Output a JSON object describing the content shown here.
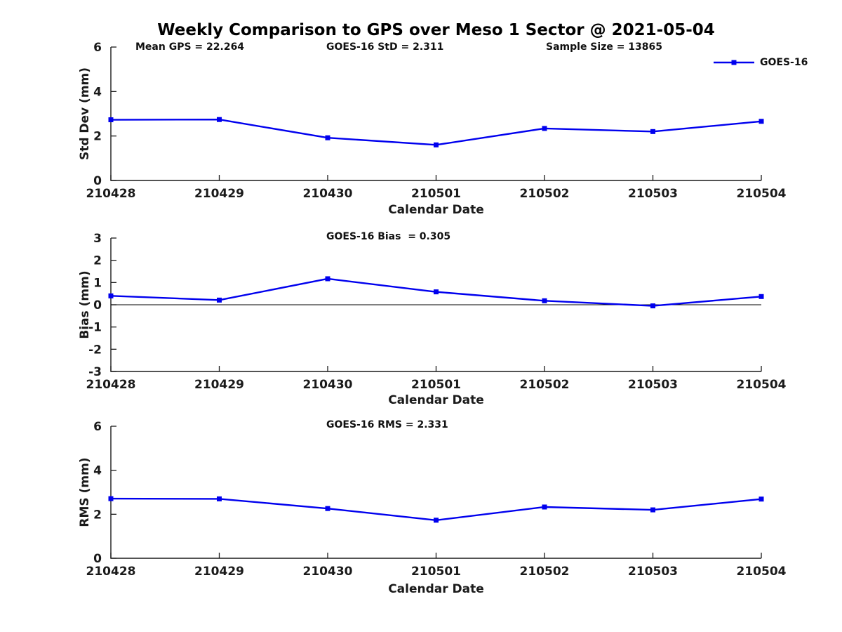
{
  "title": "Weekly Comparison to GPS over Meso 1 Sector @ 2021-05-04",
  "legend": {
    "label": "GOES-16",
    "position": "top-right"
  },
  "colors": {
    "line": "#0000EE",
    "axis": "#1A1A1A",
    "zero_line": "#000000",
    "text": "#1A1A1A"
  },
  "chart_data": [
    {
      "type": "line",
      "ylabel": "Std Dev (mm)",
      "xlabel": "Calendar Date",
      "ylim": [
        0,
        6
      ],
      "yticks": [
        0,
        2,
        4,
        6
      ],
      "grid": false,
      "zero_line": false,
      "categories": [
        "210428",
        "210429",
        "210430",
        "210501",
        "210502",
        "210503",
        "210504"
      ],
      "series": [
        {
          "name": "GOES-16",
          "values": [
            2.73,
            2.74,
            1.92,
            1.6,
            2.34,
            2.2,
            2.66
          ]
        }
      ],
      "annotations": [
        "Mean GPS = 22.264",
        "GOES-16 StD = 2.311",
        "Sample Size = 13865"
      ]
    },
    {
      "type": "line",
      "ylabel": "Bias (mm)",
      "xlabel": "Calendar Date",
      "ylim": [
        -3,
        3
      ],
      "yticks": [
        -3,
        -2,
        -1,
        0,
        1,
        2,
        3
      ],
      "grid": false,
      "zero_line": true,
      "categories": [
        "210428",
        "210429",
        "210430",
        "210501",
        "210502",
        "210503",
        "210504"
      ],
      "series": [
        {
          "name": "GOES-16",
          "values": [
            0.4,
            0.21,
            1.17,
            0.58,
            0.18,
            -0.05,
            0.37
          ]
        }
      ],
      "annotations": [
        "GOES-16 Bias  = 0.305"
      ]
    },
    {
      "type": "line",
      "ylabel": "RMS (mm)",
      "xlabel": "Calendar Date",
      "ylim": [
        0,
        6
      ],
      "yticks": [
        0,
        2,
        4,
        6
      ],
      "grid": false,
      "zero_line": false,
      "categories": [
        "210428",
        "210429",
        "210430",
        "210501",
        "210502",
        "210503",
        "210504"
      ],
      "series": [
        {
          "name": "GOES-16",
          "values": [
            2.71,
            2.7,
            2.26,
            1.73,
            2.33,
            2.2,
            2.69
          ]
        }
      ],
      "annotations": [
        "GOES-16 RMS = 2.331"
      ]
    }
  ]
}
